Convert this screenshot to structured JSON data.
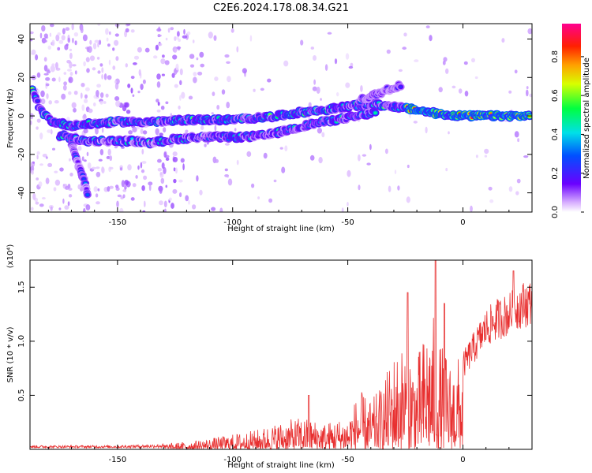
{
  "title": "C2E6.2024.178.08.34.G21",
  "colorbar": {
    "label": "Normalized spectral amplitude",
    "ticks": [
      "0.0",
      "0.2",
      "0.4",
      "0.6",
      "0.8"
    ]
  },
  "chart_data": [
    {
      "type": "heatmap",
      "xlabel": "Height of straight line (km)",
      "ylabel": "Frequency (Hz)",
      "xlim": [
        -188,
        30
      ],
      "ylim": [
        -50,
        48
      ],
      "xticks": [
        -150,
        -100,
        -50,
        0
      ],
      "yticks": [
        -40,
        -20,
        0,
        20,
        40
      ],
      "colormap": "rainbow",
      "zlim": [
        0,
        1
      ],
      "traces": [
        {
          "points": [
            [
              -187,
              13
            ],
            [
              -183,
              2
            ],
            [
              -178,
              -3
            ],
            [
              -170,
              -5
            ],
            [
              -160,
              -4
            ],
            [
              -150,
              -3
            ],
            [
              -140,
              -3
            ],
            [
              -130,
              -3
            ],
            [
              -120,
              -2
            ],
            [
              -110,
              -2
            ],
            [
              -100,
              -2
            ],
            [
              -90,
              -1
            ],
            [
              -80,
              0
            ],
            [
              -70,
              2
            ],
            [
              -60,
              3
            ],
            [
              -50,
              5
            ],
            [
              -40,
              6
            ],
            [
              -30,
              5
            ],
            [
              -20,
              3
            ],
            [
              -10,
              1
            ],
            [
              0,
              0
            ],
            [
              10,
              0
            ],
            [
              20,
              0
            ],
            [
              29,
              0
            ]
          ]
        },
        {
          "points": [
            [
              -175,
              -10
            ],
            [
              -165,
              -13
            ],
            [
              -155,
              -13
            ],
            [
              -145,
              -13
            ],
            [
              -135,
              -14
            ],
            [
              -125,
              -12
            ],
            [
              -115,
              -11
            ],
            [
              -105,
              -11
            ],
            [
              -95,
              -11
            ],
            [
              -85,
              -10
            ],
            [
              -75,
              -7
            ],
            [
              -65,
              -4
            ],
            [
              -55,
              -2
            ],
            [
              -45,
              0
            ],
            [
              -38,
              2
            ]
          ]
        },
        {
          "points": [
            [
              -170,
              -15
            ],
            [
              -167,
              -25
            ],
            [
              -165,
              -32
            ],
            [
              -163,
              -40
            ]
          ]
        },
        {
          "points": [
            [
              -45,
              8
            ],
            [
              -38,
              11
            ],
            [
              -32,
              14
            ],
            [
              -27,
              16
            ]
          ]
        }
      ]
    },
    {
      "type": "line",
      "xlabel": "Height of straight line (km)",
      "ylabel": "SNR (10 * v/v)",
      "scale_label": "(x10⁴)",
      "xlim": [
        -188,
        30
      ],
      "ylim": [
        0,
        1.75
      ],
      "xticks": [
        -150,
        -100,
        -50,
        0
      ],
      "yticks": [
        0.5,
        1.0,
        1.5
      ],
      "color": "#e83030",
      "envelope": {
        "x": [
          -188,
          -150,
          -130,
          -120,
          -110,
          -100,
          -90,
          -80,
          -70,
          -60,
          -50,
          -45,
          -40,
          -35,
          -30,
          -25,
          -20,
          -15,
          -12,
          -10,
          -5,
          0,
          5,
          10,
          15,
          20,
          25,
          30
        ],
        "y": [
          0.03,
          0.03,
          0.05,
          0.07,
          0.1,
          0.14,
          0.18,
          0.25,
          0.3,
          0.25,
          0.3,
          0.55,
          0.45,
          0.6,
          0.9,
          1.0,
          0.85,
          1.2,
          1.25,
          1.0,
          0.8,
          0.9,
          1.1,
          1.3,
          1.4,
          1.45,
          1.55,
          1.58
        ]
      },
      "peaks": [
        [
          -67,
          0.5
        ],
        [
          -24,
          1.45
        ],
        [
          -12,
          1.75
        ],
        [
          -8,
          1.35
        ],
        [
          22,
          1.65
        ]
      ]
    }
  ]
}
